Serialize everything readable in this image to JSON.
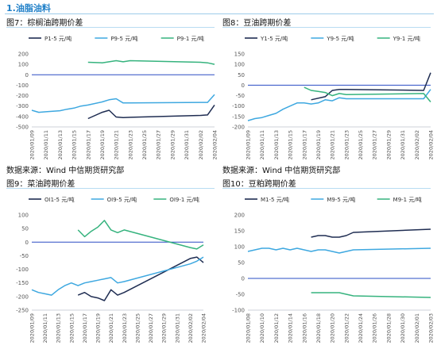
{
  "section_title": "1.油脂油料",
  "colors": {
    "dark": "#1f2d52",
    "blue": "#3ea8e0",
    "green": "#36b37e",
    "zero": "#2a4cc4",
    "accent": "#1e7fc8"
  },
  "chart_data": [
    {
      "type": "line",
      "title": "图7：棕榈油跨期价差",
      "source": "",
      "ylim": [
        -500,
        200
      ],
      "yticks": [
        -500,
        -400,
        -300,
        -200,
        -100,
        0,
        100,
        200
      ],
      "x": [
        "2020/01/09",
        "2020/01/10",
        "2020/01/11",
        "2020/01/12",
        "2020/01/13",
        "2020/01/14",
        "2020/01/15",
        "2020/01/16",
        "2020/01/17",
        "2020/01/18",
        "2020/01/19",
        "2020/01/20",
        "2020/01/21",
        "2020/01/22",
        "2020/01/23",
        "2020/01/24",
        "2020/01/25",
        "2020/01/26",
        "2020/01/27",
        "2020/01/28",
        "2020/01/29",
        "2020/01/30",
        "2020/01/31",
        "2020/02/01",
        "2020/02/02",
        "2020/02/03",
        "2020/02/04"
      ],
      "xtick_labels": [
        "2020/01/09",
        "2020/01/11",
        "2020/01/13",
        "2020/01/15",
        "2020/01/17",
        "2020/01/19",
        "2020/01/21",
        "2020/01/23",
        "2020/01/25",
        "2020/01/27",
        "2020/01/29",
        "2020/01/31",
        "2020/02/02",
        "2020/02/04"
      ],
      "grid": false,
      "legend": "top",
      "series": [
        {
          "name": "P1-5  元/吨",
          "color": "dark",
          "values": [
            null,
            null,
            null,
            null,
            null,
            null,
            null,
            null,
            -420,
            null,
            -360,
            -340,
            -405,
            -410,
            -408,
            null,
            null,
            null,
            null,
            null,
            null,
            null,
            null,
            null,
            -390,
            -385,
            -290
          ]
        },
        {
          "name": "P9-5  元/吨",
          "color": "blue",
          "values": [
            -340,
            -360,
            -355,
            -350,
            -345,
            -330,
            -320,
            -300,
            -290,
            null,
            -260,
            -240,
            -230,
            -270,
            -270,
            null,
            null,
            null,
            null,
            null,
            null,
            null,
            null,
            null,
            -265,
            -265,
            -190
          ]
        },
        {
          "name": "P9-1  元/吨",
          "color": "green",
          "values": [
            null,
            null,
            null,
            null,
            null,
            null,
            null,
            null,
            120,
            null,
            115,
            125,
            135,
            125,
            135,
            null,
            null,
            null,
            null,
            null,
            null,
            null,
            null,
            null,
            120,
            115,
            100
          ]
        }
      ]
    },
    {
      "type": "line",
      "title": "图8：豆油跨期价差",
      "source": "",
      "ylim": [
        -200,
        150
      ],
      "yticks": [
        -200,
        -150,
        -100,
        -50,
        0,
        50,
        100,
        150
      ],
      "x": [
        "2020/01/09",
        "2020/01/10",
        "2020/01/11",
        "2020/01/12",
        "2020/01/13",
        "2020/01/14",
        "2020/01/15",
        "2020/01/16",
        "2020/01/17",
        "2020/01/18",
        "2020/01/19",
        "2020/01/20",
        "2020/01/21",
        "2020/01/22",
        "2020/01/23",
        "2020/01/24",
        "2020/01/25",
        "2020/01/26",
        "2020/01/27",
        "2020/01/28",
        "2020/01/29",
        "2020/01/30",
        "2020/01/31",
        "2020/02/01",
        "2020/02/02",
        "2020/02/03",
        "2020/02/04"
      ],
      "xtick_labels": [
        "2020/01/09",
        "2020/01/11",
        "2020/01/13",
        "2020/01/15",
        "2020/01/17",
        "2020/01/19",
        "2020/01/21",
        "2020/01/23",
        "2020/01/25",
        "2020/01/27",
        "2020/01/29",
        "2020/01/31",
        "2020/02/02",
        "2020/02/04"
      ],
      "grid": false,
      "legend": "top",
      "series": [
        {
          "name": "Y1-5  元/吨",
          "color": "dark",
          "values": [
            null,
            null,
            null,
            null,
            null,
            null,
            null,
            null,
            null,
            -70,
            null,
            -55,
            -25,
            -20,
            -20,
            null,
            null,
            null,
            null,
            null,
            null,
            null,
            null,
            null,
            null,
            -25,
            60
          ]
        },
        {
          "name": "Y9-5  元/吨",
          "color": "blue",
          "values": [
            -170,
            -160,
            -155,
            -145,
            -135,
            -115,
            -100,
            -85,
            -85,
            -90,
            -85,
            -70,
            -75,
            -60,
            -65,
            null,
            null,
            null,
            null,
            null,
            null,
            null,
            null,
            null,
            null,
            -65,
            -20
          ]
        },
        {
          "name": "Y9-1  元/吨",
          "color": "green",
          "values": [
            null,
            null,
            null,
            null,
            null,
            null,
            null,
            null,
            -10,
            -25,
            -30,
            -35,
            -50,
            -40,
            -45,
            null,
            null,
            null,
            null,
            null,
            null,
            null,
            null,
            null,
            null,
            -40,
            -80
          ]
        }
      ]
    },
    {
      "type": "line",
      "title": "图9：菜油跨期价差",
      "source": "数据来源：Wind  中信期货研究部",
      "ylim": [
        -250,
        100
      ],
      "yticks": [
        -250,
        -200,
        -150,
        -100,
        -50,
        0,
        50,
        100
      ],
      "x": [
        "2020/01/09",
        "2020/01/10",
        "2020/01/11",
        "2020/01/12",
        "2020/01/13",
        "2020/01/14",
        "2020/01/15",
        "2020/01/16",
        "2020/01/17",
        "2020/01/18",
        "2020/01/19",
        "2020/01/20",
        "2020/01/21",
        "2020/01/22",
        "2020/01/23",
        "2020/01/24",
        "2020/01/25",
        "2020/01/26",
        "2020/01/27",
        "2020/01/28",
        "2020/01/29",
        "2020/01/30",
        "2020/01/31",
        "2020/02/01",
        "2020/02/02",
        "2020/02/03",
        "2020/02/04"
      ],
      "xtick_labels": [
        "2020/01/09",
        "2020/01/11",
        "2020/01/13",
        "2020/01/15",
        "2020/01/17",
        "2020/01/19",
        "2020/01/21",
        "2020/01/23",
        "2020/01/25",
        "2020/01/27",
        "2020/01/29",
        "2020/01/31",
        "2020/02/02",
        "2020/02/04"
      ],
      "grid": false,
      "legend": "top",
      "series": [
        {
          "name": "OI1-5  元/吨",
          "color": "dark",
          "values": [
            null,
            null,
            null,
            null,
            null,
            null,
            null,
            -195,
            -185,
            -200,
            -205,
            -215,
            -175,
            -195,
            -185,
            null,
            null,
            null,
            null,
            null,
            null,
            null,
            null,
            null,
            -60,
            -55,
            -75
          ]
        },
        {
          "name": "OI9-5  元/吨",
          "color": "blue",
          "values": [
            -175,
            -185,
            -190,
            -195,
            -175,
            -160,
            -150,
            -160,
            -150,
            -145,
            -140,
            -135,
            -130,
            -150,
            -145,
            null,
            null,
            null,
            null,
            null,
            null,
            null,
            null,
            null,
            -80,
            -70,
            -55
          ]
        },
        {
          "name": "OI9-1  元/吨",
          "color": "green",
          "values": [
            null,
            null,
            null,
            null,
            null,
            null,
            null,
            45,
            20,
            40,
            55,
            80,
            45,
            35,
            45,
            null,
            null,
            null,
            null,
            null,
            null,
            null,
            null,
            null,
            -20,
            -25,
            -10
          ]
        }
      ]
    },
    {
      "type": "line",
      "title": "图10：豆粕跨期价差",
      "source": "数据来源：Wind  中信期货研究部",
      "ylim": [
        -100,
        200
      ],
      "yticks": [
        -100,
        -50,
        0,
        50,
        100,
        150,
        200
      ],
      "x": [
        "2020/01/08",
        "2020/01/09",
        "2020/01/10",
        "2020/01/11",
        "2020/01/12",
        "2020/01/13",
        "2020/01/14",
        "2020/01/15",
        "2020/01/16",
        "2020/01/17",
        "2020/01/18",
        "2020/01/19",
        "2020/01/20",
        "2020/01/21",
        "2020/01/22",
        "2020/01/23",
        "2020/01/24",
        "2020/01/25",
        "2020/01/26",
        "2020/01/27",
        "2020/01/28",
        "2020/01/29",
        "2020/01/30",
        "2020/01/31",
        "2020/02/01",
        "2020/02/02",
        "2020/02/03"
      ],
      "xtick_labels": [
        "2020/01/08",
        "2020/01/10",
        "2020/01/12",
        "2020/01/14",
        "2020/01/16",
        "2020/01/18",
        "2020/01/20",
        "2020/01/22",
        "2020/01/24",
        "2020/01/26",
        "2020/01/28",
        "2020/01/30",
        "2020/02/01",
        "2020/02/03"
      ],
      "grid": false,
      "legend": "top",
      "series": [
        {
          "name": "M1-5  元/吨",
          "color": "dark",
          "values": [
            null,
            null,
            null,
            null,
            null,
            null,
            null,
            null,
            null,
            130,
            135,
            135,
            130,
            130,
            135,
            145,
            null,
            null,
            null,
            null,
            null,
            null,
            null,
            null,
            null,
            null,
            155
          ]
        },
        {
          "name": "M9-5  元/吨",
          "color": "blue",
          "values": [
            85,
            90,
            95,
            95,
            90,
            95,
            90,
            95,
            90,
            85,
            90,
            90,
            85,
            80,
            85,
            90,
            null,
            null,
            null,
            null,
            null,
            null,
            null,
            null,
            null,
            null,
            95
          ]
        },
        {
          "name": "M9-1  元/吨",
          "color": "green",
          "values": [
            null,
            null,
            null,
            null,
            null,
            null,
            null,
            null,
            null,
            -45,
            -45,
            -45,
            -45,
            -45,
            -50,
            -55,
            null,
            null,
            null,
            null,
            null,
            null,
            null,
            null,
            null,
            null,
            -60
          ]
        }
      ]
    }
  ]
}
